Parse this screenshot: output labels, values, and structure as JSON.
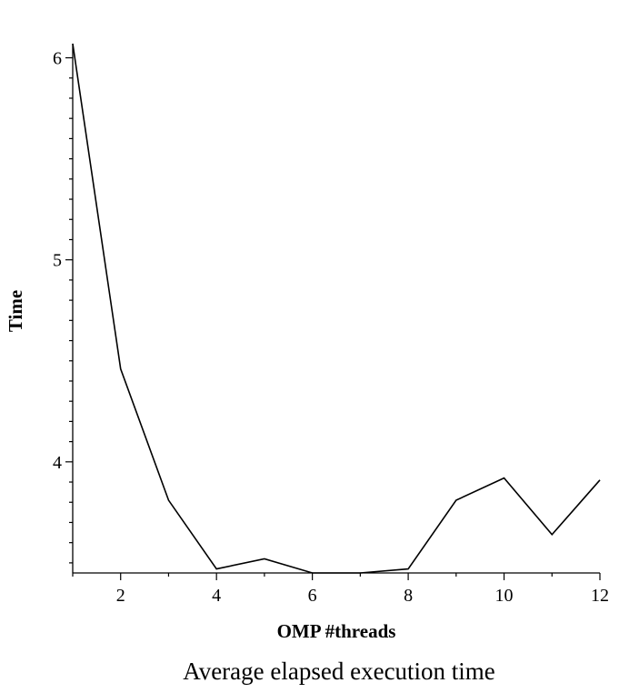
{
  "chart_data": {
    "type": "line",
    "title": "",
    "caption": "Average elapsed execution time",
    "xlabel": "OMP #threads",
    "ylabel": "Time",
    "xlim": [
      1,
      12
    ],
    "ylim": [
      3.45,
      6.07
    ],
    "x_ticks": [
      2,
      4,
      6,
      8,
      10,
      12
    ],
    "y_ticks": [
      4,
      5,
      6
    ],
    "grid": false,
    "series": [
      {
        "x": [
          1,
          2,
          3,
          4,
          5,
          6,
          7,
          8,
          9,
          10,
          11,
          12
        ],
        "values": [
          6.07,
          4.46,
          3.81,
          3.47,
          3.52,
          3.45,
          3.45,
          3.47,
          3.81,
          3.92,
          3.64,
          3.91
        ],
        "color": "#000000"
      }
    ]
  }
}
